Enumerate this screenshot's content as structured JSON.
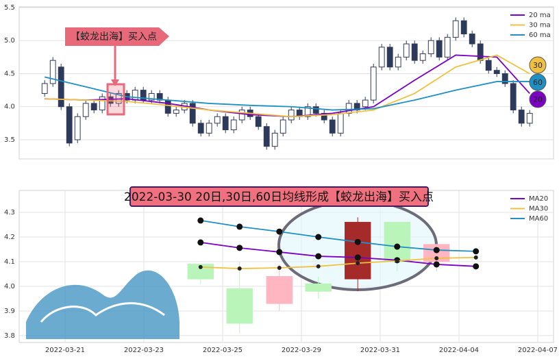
{
  "chart_data": [
    {
      "type": "candlestick",
      "annotation": "【蛟龙出海】买入点",
      "open": [
        4.2,
        4.35,
        4.6,
        4.0,
        3.5,
        3.85,
        4.05,
        3.95,
        4.15,
        4.05,
        4.2,
        4.1,
        4.25,
        4.1,
        4.2,
        4.1,
        3.9,
        3.95,
        4.05,
        3.75,
        3.6,
        3.75,
        3.85,
        3.65,
        3.8,
        3.95,
        3.85,
        3.7,
        3.4,
        3.6,
        3.8,
        3.95,
        3.85,
        4.0,
        3.9,
        3.8,
        3.6,
        3.9,
        4.05,
        4.0,
        4.1,
        4.6,
        4.9,
        4.6,
        4.75,
        4.95,
        4.7,
        4.8,
        5.0,
        4.75,
        5.05,
        5.3,
        5.1,
        4.95,
        4.7,
        4.55,
        4.5,
        4.35,
        3.95,
        3.75
      ],
      "high": [
        4.4,
        4.75,
        4.65,
        4.05,
        3.9,
        4.1,
        4.1,
        4.2,
        4.2,
        4.25,
        4.25,
        4.3,
        4.3,
        4.25,
        4.25,
        4.15,
        4.0,
        4.1,
        4.1,
        3.8,
        3.8,
        3.9,
        3.9,
        3.85,
        4.0,
        4.0,
        3.9,
        3.75,
        3.65,
        3.85,
        4.0,
        4.0,
        4.05,
        4.05,
        3.95,
        3.85,
        3.95,
        4.1,
        4.1,
        4.15,
        4.65,
        4.95,
        4.95,
        4.8,
        5.0,
        5.0,
        4.85,
        5.05,
        5.05,
        5.1,
        5.35,
        5.35,
        5.15,
        5.0,
        4.75,
        4.6,
        4.55,
        4.4,
        4.0,
        3.95
      ],
      "low": [
        4.15,
        4.3,
        3.95,
        3.4,
        3.45,
        3.8,
        3.9,
        3.9,
        4.0,
        4.0,
        4.05,
        4.05,
        4.05,
        4.05,
        4.05,
        3.85,
        3.85,
        3.9,
        3.7,
        3.55,
        3.55,
        3.7,
        3.6,
        3.6,
        3.75,
        3.8,
        3.65,
        3.35,
        3.35,
        3.55,
        3.75,
        3.8,
        3.8,
        3.85,
        3.75,
        3.55,
        3.55,
        3.85,
        3.9,
        3.95,
        4.05,
        4.55,
        4.55,
        4.55,
        4.7,
        4.65,
        4.65,
        4.75,
        4.7,
        4.7,
        5.0,
        5.05,
        4.9,
        4.65,
        4.5,
        4.45,
        4.3,
        3.9,
        3.7,
        3.7
      ],
      "close": [
        4.35,
        4.7,
        4.0,
        3.45,
        3.85,
        4.05,
        3.95,
        4.15,
        4.05,
        4.2,
        4.1,
        4.25,
        4.1,
        4.2,
        4.1,
        3.9,
        3.95,
        4.05,
        3.75,
        3.6,
        3.75,
        3.85,
        3.65,
        3.8,
        3.95,
        3.85,
        3.7,
        3.4,
        3.6,
        3.8,
        3.95,
        3.85,
        4.0,
        3.9,
        3.8,
        3.6,
        3.9,
        4.05,
        3.95,
        4.1,
        4.6,
        4.9,
        4.6,
        4.75,
        4.95,
        4.7,
        4.8,
        5.0,
        4.75,
        5.05,
        5.3,
        5.1,
        4.95,
        4.7,
        4.55,
        4.5,
        4.35,
        3.95,
        3.75,
        3.9
      ],
      "colors": {
        "up": "#ffffff",
        "down": "#2d3a5c"
      },
      "outline": "#2d3a5c",
      "lines": {
        "x": [
          0,
          5,
          10,
          15,
          20,
          25,
          30,
          35,
          40,
          45,
          50,
          55,
          59
        ],
        "series": [
          {
            "name": "20 ma",
            "badge": "20",
            "color": "#7b00c4",
            "values": [
              4.12,
              4.1,
              4.12,
              4.05,
              3.95,
              3.88,
              3.85,
              3.9,
              4.0,
              4.4,
              4.78,
              4.75,
              4.2
            ]
          },
          {
            "name": "30 ma",
            "badge": "30",
            "color": "#f0c040",
            "values": [
              4.12,
              4.1,
              4.08,
              4.02,
              3.95,
              3.9,
              3.85,
              3.88,
              3.95,
              4.2,
              4.6,
              4.78,
              4.5
            ]
          },
          {
            "name": "60 ma",
            "badge": "60",
            "color": "#1f8fc4",
            "values": [
              4.45,
              4.3,
              4.15,
              4.1,
              4.05,
              4.02,
              4.0,
              3.95,
              3.97,
              4.1,
              4.25,
              4.38,
              4.38
            ]
          }
        ]
      },
      "xlim": [
        -3.1,
        61.9
      ],
      "ylim": [
        3.21,
        5.51
      ],
      "yticks": [
        3.5,
        {
          "value": 4,
          "label": "4.0"
        },
        4.5,
        {
          "value": 5,
          "label": "5.0"
        },
        5.5
      ],
      "grid": true
    },
    {
      "type": "candlestick",
      "title": "2022-03-30 20日,30日,60日均线形成【蛟龙出海】买入点",
      "x": [
        3.44,
        4.43,
        5.44,
        6.43,
        7.43,
        8.43,
        9.43
      ],
      "open": [
        4.09,
        3.99,
        3.93,
        4.01,
        4.03,
        4.26,
        4.1
      ],
      "high": [
        4.09,
        4.1,
        4.09,
        4.04,
        4.28,
        4.26,
        4.17
      ],
      "low": [
        4.01,
        3.81,
        3.9,
        3.95,
        3.98,
        4.06,
        4.06
      ],
      "close": [
        4.03,
        3.85,
        4.04,
        3.98,
        4.26,
        4.1,
        4.17
      ],
      "candle_colors": [
        "#b9f5b9",
        "#b9f5b9",
        "#ffb6c1",
        "#b9f5b9",
        "#a52a2a",
        "#b9f5b9",
        "#ffb6c1"
      ],
      "lines": {
        "x": [
          3.44,
          4.43,
          5.44,
          6.43,
          7.43,
          8.43,
          9.43,
          10.43
        ],
        "series": [
          {
            "name": "MA20",
            "color": "#7b00c4",
            "values": [
              4.178,
              4.156,
              4.139,
              4.122,
              4.117,
              4.106,
              4.089,
              4.081
            ]
          },
          {
            "name": "MA30",
            "color": "#f0c040",
            "values": [
              4.078,
              4.072,
              4.075,
              4.081,
              4.094,
              4.103,
              4.114,
              4.117
            ]
          },
          {
            "name": "MA60",
            "color": "#1f8fc4",
            "values": [
              4.267,
              4.242,
              4.222,
              4.2,
              4.18,
              4.161,
              4.147,
              4.142
            ]
          }
        ]
      },
      "xlim": [
        -1.165,
        12.4
      ],
      "xticks": [
        {
          "value": 0,
          "label": "2022-03-21"
        },
        {
          "value": 2,
          "label": "2022-03-23"
        },
        {
          "value": 4,
          "label": "2022-03-25"
        },
        {
          "value": 6,
          "label": "2022-03-29"
        },
        {
          "value": 8,
          "label": "2022-03-31"
        },
        {
          "value": 10,
          "label": "2022-04-04"
        },
        {
          "value": 12,
          "label": "2022-04-07"
        }
      ],
      "ylim": [
        3.772,
        4.389
      ],
      "yticks": [
        3.8,
        3.9,
        {
          "value": 4,
          "label": "4.0"
        },
        4.1,
        4.2,
        4.3
      ],
      "grid": true
    }
  ]
}
